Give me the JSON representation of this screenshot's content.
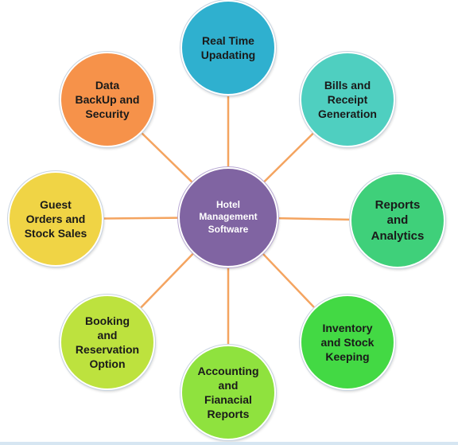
{
  "hub": {
    "label": "Hotel\nManagement\nSoftware",
    "color": "#8064a2"
  },
  "nodes": [
    {
      "id": "real-time-updating",
      "label": "Real Time\nUpadating",
      "color": "#2fb0cf"
    },
    {
      "id": "bills-and-receipt-generation",
      "label": "Bills and\nReceipt\nGeneration",
      "color": "#4fcfc0"
    },
    {
      "id": "reports-and-analytics",
      "label": "Reports\nand\nAnalytics",
      "color": "#3fd07a"
    },
    {
      "id": "inventory-and-stock-keeping",
      "label": "Inventory\nand Stock\nKeeping",
      "color": "#43d944"
    },
    {
      "id": "accounting-and-fianacial-reports",
      "label": "Accounting\nand\nFianacial\nReports",
      "color": "#8fe23e"
    },
    {
      "id": "booking-and-reservation-option",
      "label": "Booking\nand\nReservation\nOption",
      "color": "#bde23e"
    },
    {
      "id": "guest-orders-and-stock-sales",
      "label": "Guest\nOrders and\nStock Sales",
      "color": "#f0d445"
    },
    {
      "id": "data-backup-and-security",
      "label": "Data\nBackUp and\nSecurity",
      "color": "#f6924a"
    }
  ],
  "connector_color": "#f4a460"
}
